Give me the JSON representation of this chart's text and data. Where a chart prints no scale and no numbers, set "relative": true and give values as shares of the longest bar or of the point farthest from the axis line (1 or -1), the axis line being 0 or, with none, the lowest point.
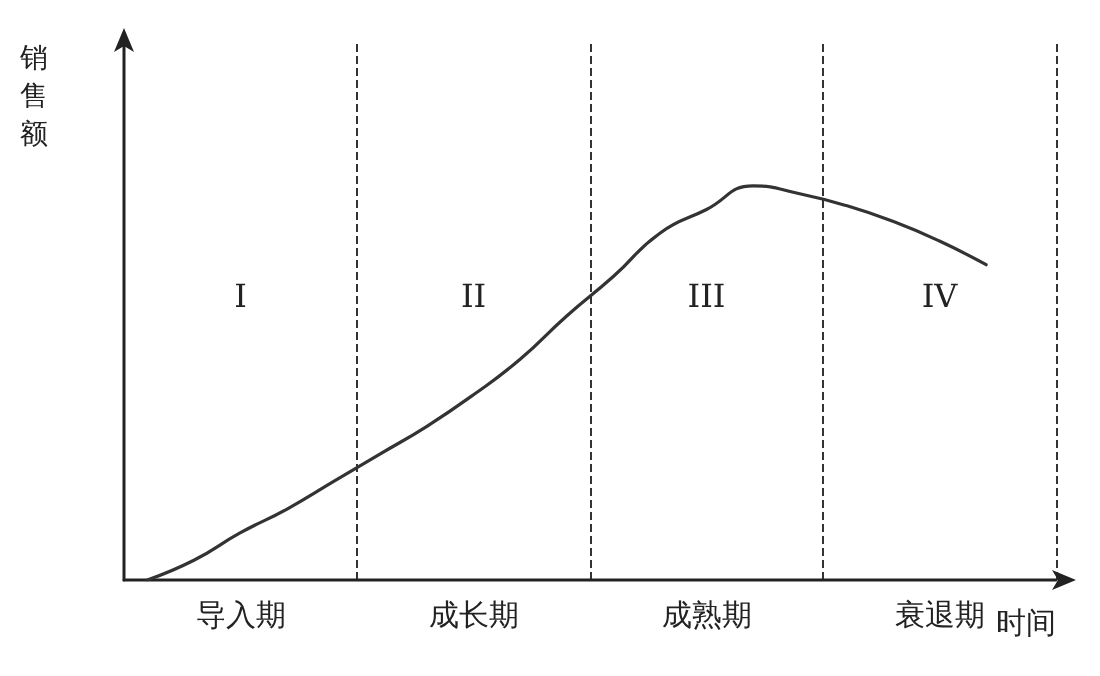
{
  "chart_data": {
    "type": "line",
    "relative": true,
    "xlabel": "时间",
    "ylabel": "销售额",
    "categories": [
      null,
      null,
      "导入期",
      null,
      null,
      null,
      null,
      "成长期",
      null,
      null,
      null,
      null,
      "成熟期",
      null,
      null,
      null,
      null,
      "衰退期",
      null,
      null
    ],
    "series": [
      {
        "color": "#333333",
        "values": [
          0,
          0.05,
          0.12,
          0.18,
          0.25,
          0.32,
          0.39,
          0.47,
          0.56,
          0.67,
          0.77,
          0.88,
          0.94,
          1,
          0.98,
          0.95,
          0.91,
          0.86,
          0.8,
          null
        ]
      }
    ],
    "annotations": [
      "I",
      "II",
      "III",
      "IV"
    ],
    "grid": "x",
    "marker": "none",
    "line_style": "solid"
  }
}
